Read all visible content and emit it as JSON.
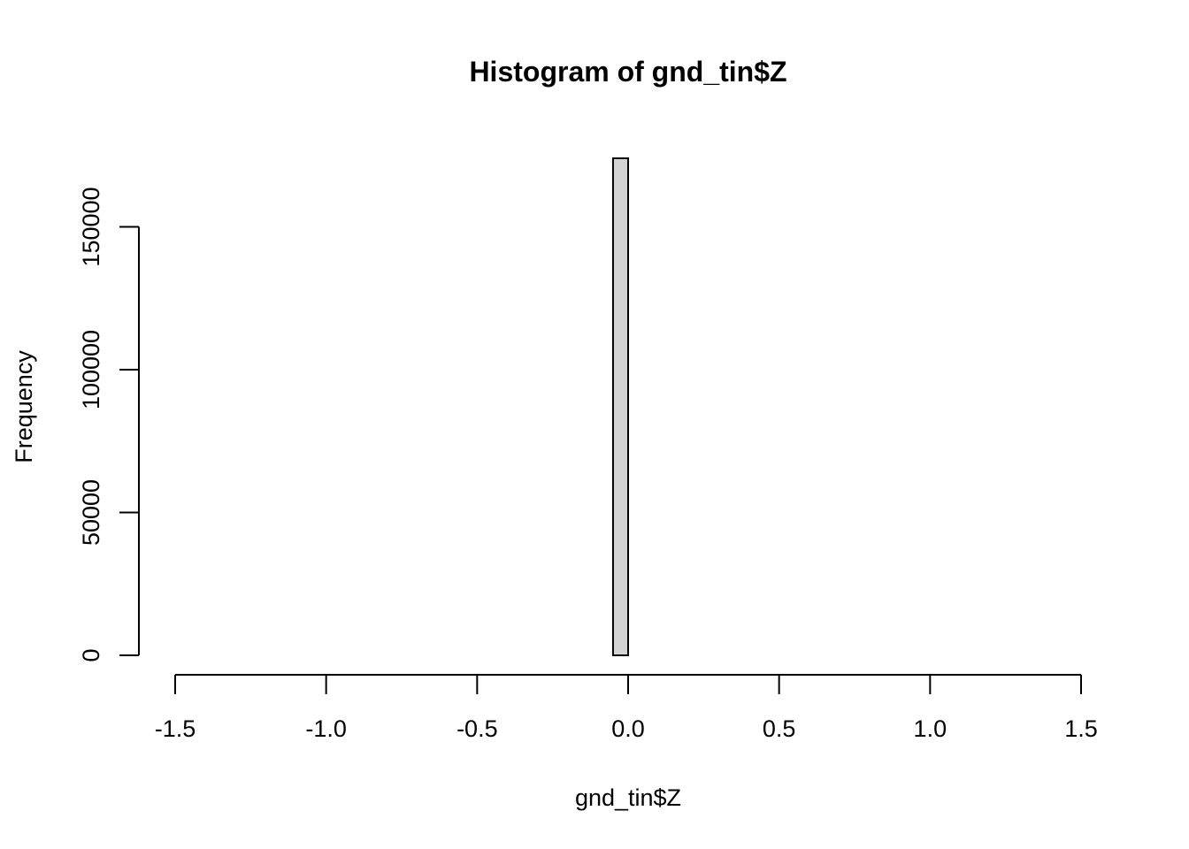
{
  "chart_data": {
    "type": "histogram",
    "title": "Histogram of gnd_tin$Z",
    "x_label": "gnd_tin$Z",
    "y_label": "Frequency",
    "bins": [
      -1.5,
      -1.45,
      -1.4,
      -1.35,
      -1.3,
      -1.25,
      -1.2,
      -1.15,
      -1.1,
      -1.05,
      -1,
      -0.95,
      -0.9,
      -0.85,
      -0.8,
      -0.75,
      -0.7,
      -0.65,
      -0.6,
      -0.55,
      -0.5,
      -0.45,
      -0.4,
      -0.35,
      -0.3,
      -0.25,
      -0.2,
      -0.15,
      -0.1,
      -0.05,
      0,
      0.05,
      0.1,
      0.15,
      0.2,
      0.25,
      0.3,
      0.35,
      0.4,
      0.45,
      0.5,
      0.55,
      0.6,
      0.65,
      0.7,
      0.75,
      0.8,
      0.85,
      0.9,
      0.95,
      1,
      1.05,
      1.1,
      1.15,
      1.2,
      1.25,
      1.3,
      1.35,
      1.4,
      1.45,
      1.5
    ],
    "values": [
      0,
      0,
      0,
      0,
      0,
      0,
      0,
      0,
      0,
      0,
      0,
      0,
      0,
      0,
      0,
      0,
      0,
      0,
      0,
      0,
      0,
      0,
      0,
      0,
      0,
      0,
      0,
      0,
      0,
      174000,
      0,
      0,
      0,
      0,
      0,
      0,
      0,
      0,
      0,
      0,
      0,
      0,
      0,
      0,
      0,
      0,
      0,
      0,
      0,
      0,
      0,
      0,
      0,
      0,
      0,
      0,
      0,
      0,
      0,
      0
    ],
    "color": "#d3d3d3",
    "xlim": [
      -1.5,
      1.5
    ],
    "xticks": [
      -1.5,
      {
        "value": -1,
        "label": "-1.0"
      },
      -0.5,
      {
        "value": 0,
        "label": "0.0"
      },
      0.5,
      {
        "value": 1,
        "label": "1.0"
      },
      1.5
    ],
    "ylim": [
      0,
      174000
    ],
    "yticks": [
      0,
      50000,
      100000,
      150000
    ]
  }
}
